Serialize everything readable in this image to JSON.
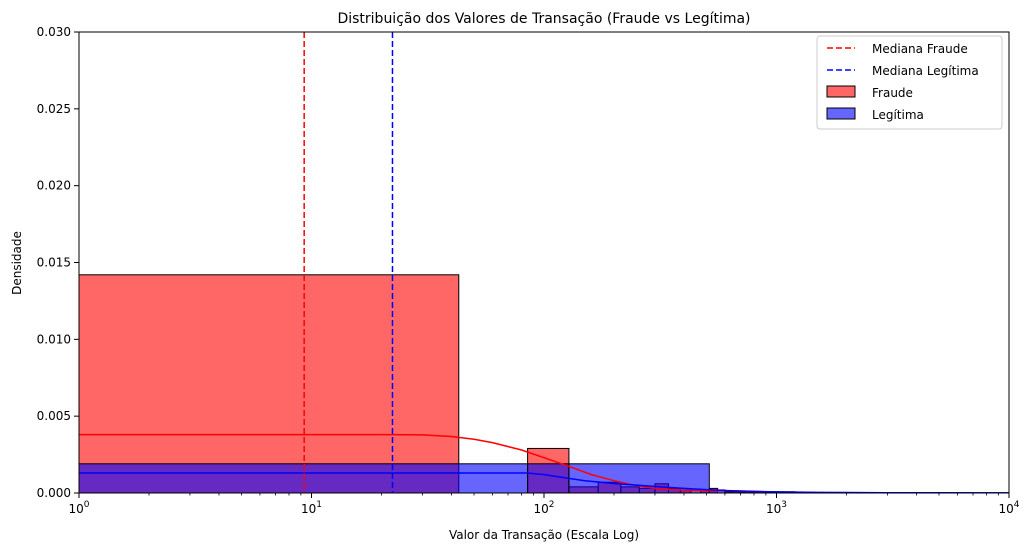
{
  "chart_data": {
    "type": "histogram",
    "title": "Distribuição dos Valores de Transação (Fraude vs Legítima)",
    "xlabel": "Valor da Transação (Escala Log)",
    "ylabel": "Densidade",
    "xscale": "log",
    "xlim": [
      1,
      10000
    ],
    "ylim": [
      0,
      0.03
    ],
    "x_ticks": [
      {
        "value": 1,
        "base": "10",
        "exp": "0"
      },
      {
        "value": 10,
        "base": "10",
        "exp": "1"
      },
      {
        "value": 100,
        "base": "10",
        "exp": "2"
      },
      {
        "value": 1000,
        "base": "10",
        "exp": "3"
      },
      {
        "value": 10000,
        "base": "10",
        "exp": "4"
      }
    ],
    "y_ticks": [
      {
        "value": 0,
        "label": "0.000"
      },
      {
        "value": 0.005,
        "label": "0.005"
      },
      {
        "value": 0.01,
        "label": "0.010"
      },
      {
        "value": 0.015,
        "label": "0.015"
      },
      {
        "value": 0.02,
        "label": "0.020"
      },
      {
        "value": 0.025,
        "label": "0.025"
      },
      {
        "value": 0.03,
        "label": "0.030"
      }
    ],
    "grid": false,
    "legend_position": "top-right",
    "legend": [
      {
        "label": "Mediana Fraude",
        "kind": "dashed-line",
        "color": "#ff0000"
      },
      {
        "label": "Mediana Legítima",
        "kind": "dashed-line",
        "color": "#0000ff"
      },
      {
        "label": "Fraude",
        "kind": "patch",
        "color": "#ff6666"
      },
      {
        "label": "Legítima",
        "kind": "patch",
        "color": "#6666ee"
      }
    ],
    "series": [
      {
        "name": "Fraude",
        "color": "#ff0000",
        "alpha": 0.6,
        "bins": [
          {
            "x0": 0.1,
            "x1": 43,
            "y": 0.0142
          },
          {
            "x0": 85,
            "x1": 128,
            "y": 0.0029
          },
          {
            "x0": 128,
            "x1": 171,
            "y": 0.0004
          },
          {
            "x0": 171,
            "x1": 214,
            "y": 0.0007
          },
          {
            "x0": 214,
            "x1": 257,
            "y": 0.0004
          },
          {
            "x0": 257,
            "x1": 300,
            "y": 0.0003
          },
          {
            "x0": 300,
            "x1": 343,
            "y": 0.0006
          },
          {
            "x0": 343,
            "x1": 386,
            "y": 0.0003
          },
          {
            "x0": 386,
            "x1": 429,
            "y": 0.0002
          },
          {
            "x0": 472,
            "x1": 515,
            "y": 0.0002
          },
          {
            "x0": 515,
            "x1": 558,
            "y": 0.0003
          },
          {
            "x0": 601,
            "x1": 644,
            "y": 0.0001
          },
          {
            "x0": 687,
            "x1": 730,
            "y": 0.0001
          },
          {
            "x0": 773,
            "x1": 816,
            "y": 0.0001
          }
        ],
        "kde": {
          "x": [
            1,
            2,
            5,
            10,
            20,
            30,
            40,
            50,
            60,
            80,
            100,
            130,
            160,
            200,
            250,
            300,
            400,
            500,
            600,
            700,
            800,
            1000,
            1500,
            2000
          ],
          "y": [
            0.0038,
            0.0038,
            0.0038,
            0.0038,
            0.0038,
            0.00378,
            0.00368,
            0.0035,
            0.00328,
            0.0028,
            0.0023,
            0.0017,
            0.0012,
            0.0008,
            0.00048,
            0.0003,
            0.00018,
            0.00015,
            0.00014,
            0.00013,
            0.00011,
            6e-05,
            2e-05,
            5e-06
          ]
        }
      },
      {
        "name": "Legítima",
        "color": "#0000ff",
        "alpha": 0.6,
        "bins": [
          {
            "x0": 0.1,
            "x1": 85,
            "y": 0.0019
          },
          {
            "x0": 85,
            "x1": 128,
            "y": 0.0019
          },
          {
            "x0": 128,
            "x1": 514,
            "y": 0.0019
          },
          {
            "x0": 514,
            "x1": 600,
            "y": 0.0002
          },
          {
            "x0": 600,
            "x1": 1200,
            "y": 8e-05
          },
          {
            "x0": 1200,
            "x1": 2500,
            "y": 3e-05
          },
          {
            "x0": 2500,
            "x1": 10000,
            "y": 1e-05
          }
        ],
        "kde": {
          "x": [
            1,
            5,
            20,
            60,
            85,
            100,
            128,
            150,
            200,
            300,
            400,
            500,
            600,
            800,
            1000,
            1500,
            2000,
            3000,
            5000,
            10000
          ],
          "y": [
            0.0013,
            0.0013,
            0.0013,
            0.0013,
            0.0013,
            0.0012,
            0.00095,
            0.0008,
            0.00062,
            0.00042,
            0.0003,
            0.00022,
            0.00016,
            0.0001,
            7e-05,
            4e-05,
            3e-05,
            2e-05,
            1e-05,
            5e-06
          ]
        }
      }
    ],
    "medians": [
      {
        "name": "Mediana Fraude",
        "x": 9.3,
        "color": "#ff0000"
      },
      {
        "name": "Mediana Legítima",
        "x": 22.3,
        "color": "#0000ff"
      }
    ]
  }
}
